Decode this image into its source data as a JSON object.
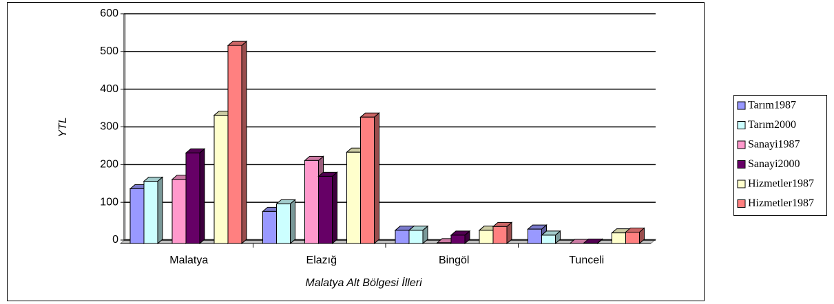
{
  "chart_data": {
    "type": "bar3d",
    "y_label": "YTL",
    "x_label": "Malatya Alt Bölgesi İlleri",
    "categories": [
      "Malatya",
      "Elazığ",
      "Bingöl",
      "Tunceli"
    ],
    "series": [
      {
        "name": "Tarım1987",
        "color": "#9999ff",
        "values": [
          145,
          85,
          35,
          38
        ]
      },
      {
        "name": "Tarım2000",
        "color": "#ccffff",
        "values": [
          165,
          105,
          35,
          22
        ]
      },
      {
        "name": "Sanayi1987",
        "color": "#ff99cc",
        "values": [
          170,
          220,
          2,
          0
        ]
      },
      {
        "name": "Sanayi2000",
        "color": "#660066",
        "values": [
          240,
          178,
          22,
          1
        ]
      },
      {
        "name": "Hizmetler1987",
        "color": "#ffffcc",
        "values": [
          340,
          242,
          35,
          28
        ]
      },
      {
        "name": "Hizmetler1987",
        "color": "#ff8080",
        "values": [
          525,
          335,
          45,
          30
        ]
      }
    ],
    "ylim": [
      0,
      600
    ],
    "yticks": [
      0,
      100,
      200,
      300,
      400,
      500,
      600
    ],
    "grid": true,
    "legend": "right"
  }
}
